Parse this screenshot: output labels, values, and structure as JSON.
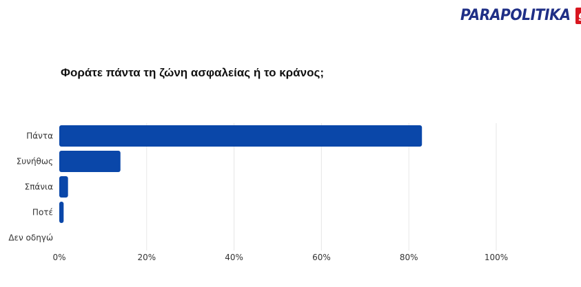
{
  "logo": {
    "text": "PARAPOLITIKA",
    "badge": "gr"
  },
  "colors": {
    "bar": "#0a47a9",
    "grid": "#e6e6e6",
    "logo_blue": "#1f2f86",
    "logo_red": "#d8161f"
  },
  "chart_data": {
    "type": "bar",
    "orientation": "horizontal",
    "title": "Φοράτε πάντα τη ζώνη ασφαλείας ή το κράνος;",
    "categories": [
      "Πάντα",
      "Συνήθως",
      "Σπάνια",
      "Ποτέ",
      "Δεν οδηγώ"
    ],
    "values": [
      83,
      14,
      2,
      1,
      0
    ],
    "unit": "%",
    "xlim": [
      0,
      100
    ],
    "x_ticks": [
      "0%",
      "20%",
      "40%",
      "60%",
      "80%",
      "100%"
    ],
    "grid": true,
    "legend": false
  }
}
